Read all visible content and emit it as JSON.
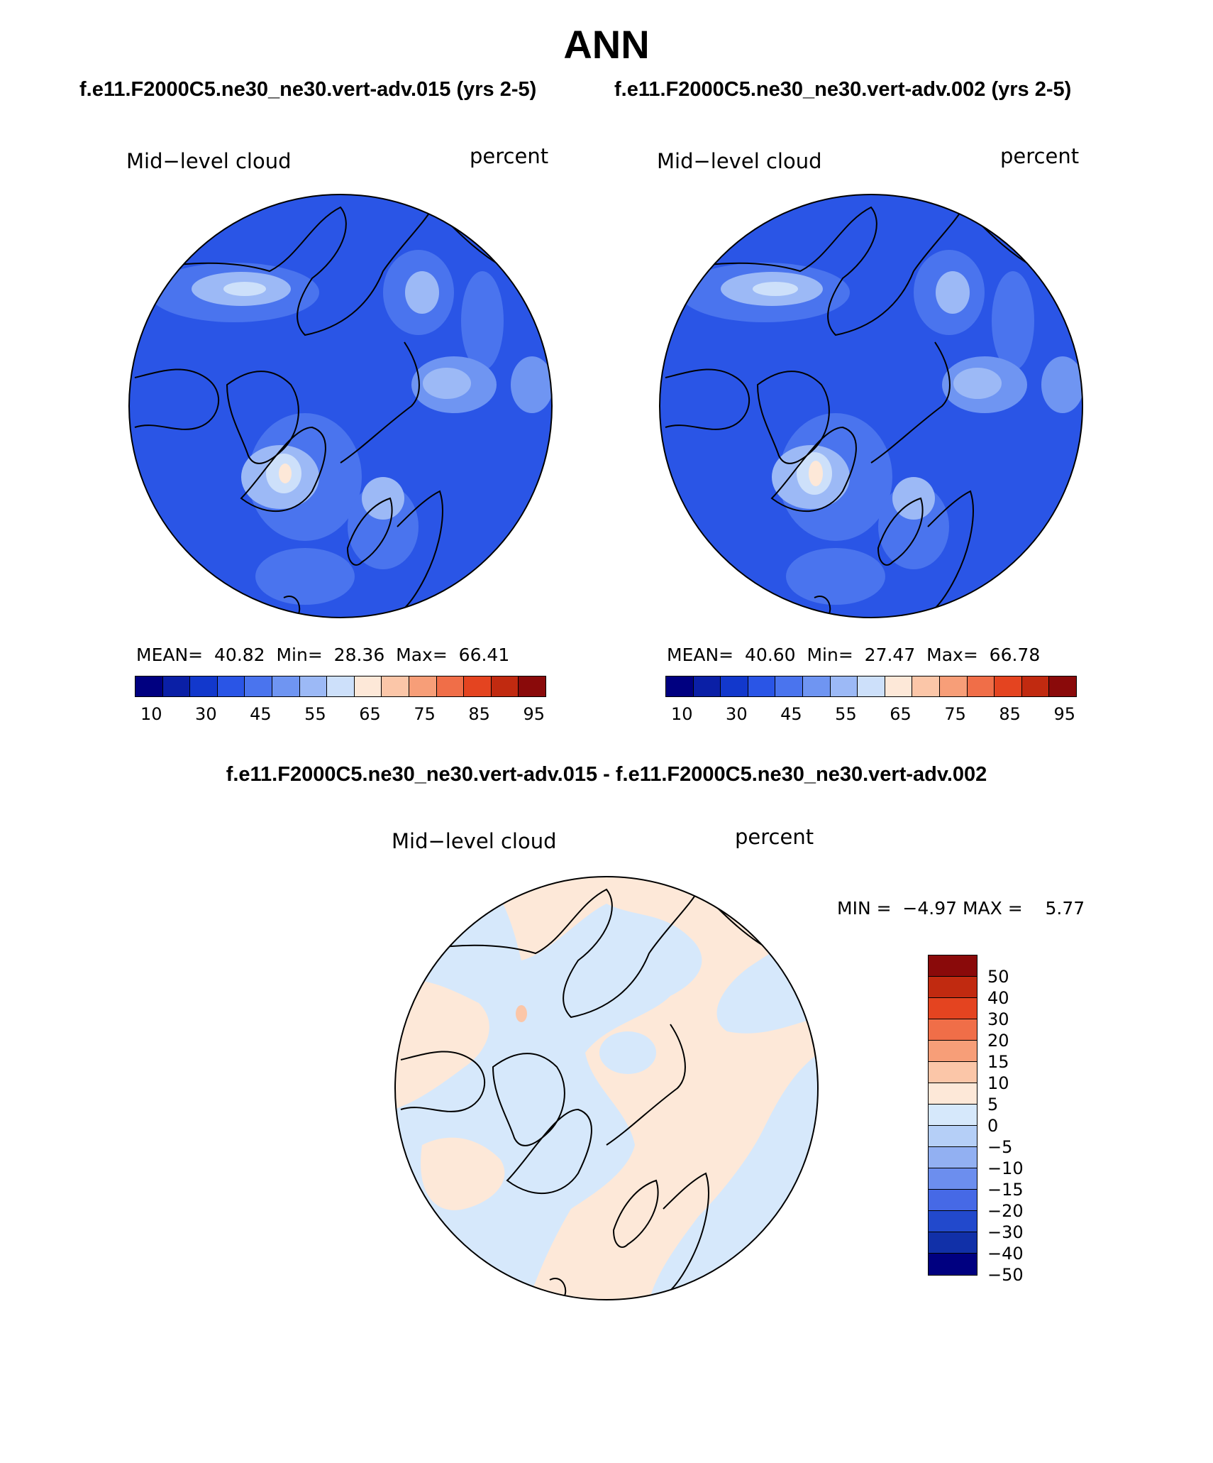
{
  "figure": {
    "season": "ANN",
    "case_a": "f.e11.F2000C5.ne30_ne30.vert-adv.015 (yrs 2-5)",
    "case_b": "f.e11.F2000C5.ne30_ne30.vert-adv.002 (yrs 2-5)",
    "diff_title": "f.e11.F2000C5.ne30_ne30.vert-adv.015 - f.e11.F2000C5.ne30_ne30.vert-adv.002"
  },
  "panel_a": {
    "variable": "Mid−level cloud",
    "units": "percent",
    "stats": "MEAN=  40.82  Min=  28.36  Max=  66.41",
    "colorbar_ticks": [
      "10",
      "30",
      "45",
      "55",
      "65",
      "75",
      "85",
      "95"
    ]
  },
  "panel_b": {
    "variable": "Mid−level cloud",
    "units": "percent",
    "stats": "MEAN=  40.60  Min=  27.47  Max=  66.78",
    "colorbar_ticks": [
      "10",
      "30",
      "45",
      "55",
      "65",
      "75",
      "85",
      "95"
    ]
  },
  "panel_diff": {
    "variable": "Mid−level cloud",
    "units": "percent",
    "stats": "MIN =  −4.97 MAX =    5.77",
    "colorbar_ticks": [
      "50",
      "40",
      "30",
      "20",
      "15",
      "10",
      "5",
      "0",
      "−5",
      "−10",
      "−15",
      "−20",
      "−30",
      "−40",
      "−50"
    ]
  },
  "colors": {
    "abs_scale": [
      "#000080",
      "#0a1fa6",
      "#1238cc",
      "#2a55e6",
      "#4a74ee",
      "#6f95f2",
      "#9cb9f6",
      "#cde0fa",
      "#fde8d8",
      "#fbc6a8",
      "#f79e78",
      "#f06e48",
      "#e44420",
      "#c12a10",
      "#8a0a0a"
    ],
    "diff_scale": [
      "#8a0a0a",
      "#c12a10",
      "#e44420",
      "#f06e48",
      "#f79e78",
      "#fbc6a8",
      "#fde8d8",
      "#d6e8fb",
      "#b5cff7",
      "#92b0f2",
      "#6c8eee",
      "#4669e6",
      "#2249cc",
      "#1130a8",
      "#000080"
    ],
    "map_base": "#2a55e6",
    "diff_warm": "#fde8d8",
    "diff_cool": "#d6e8fb"
  }
}
